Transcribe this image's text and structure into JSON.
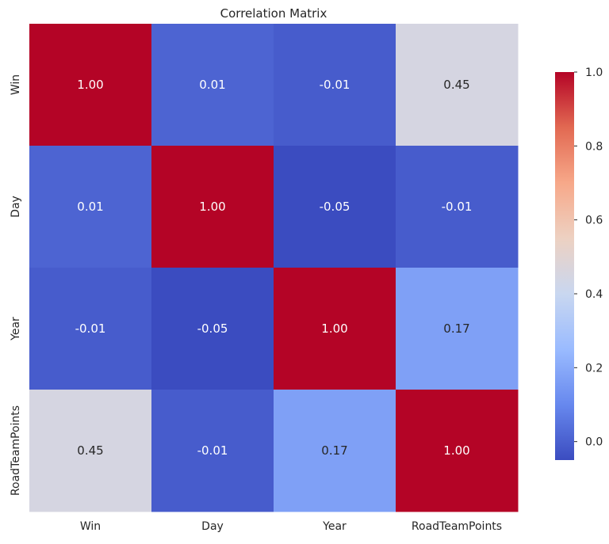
{
  "chart_data": {
    "type": "heatmap",
    "title": "Correlation Matrix",
    "xlabel": "",
    "ylabel": "",
    "row_labels": [
      "Win",
      "Day",
      "Year",
      "RoadTeamPoints"
    ],
    "col_labels": [
      "Win",
      "Day",
      "Year",
      "RoadTeamPoints"
    ],
    "values": [
      [
        1.0,
        0.01,
        -0.01,
        0.45
      ],
      [
        0.01,
        1.0,
        -0.05,
        -0.01
      ],
      [
        -0.01,
        -0.05,
        1.0,
        0.17
      ],
      [
        0.45,
        -0.01,
        0.17,
        1.0
      ]
    ],
    "cell_labels": [
      [
        "1.00",
        "0.01",
        "-0.01",
        "0.45"
      ],
      [
        "0.01",
        "1.00",
        "-0.05",
        "-0.01"
      ],
      [
        "-0.01",
        "-0.05",
        "1.00",
        "0.17"
      ],
      [
        "0.45",
        "-0.01",
        "0.17",
        "1.00"
      ]
    ],
    "colormap": "coolwarm",
    "colormap_stops": [
      "#3b4cc0",
      "#6788ee",
      "#9abbff",
      "#c9d7f0",
      "#edd1c2",
      "#f7a889",
      "#e26952",
      "#b40426"
    ],
    "colorbar": {
      "range": [
        -0.05,
        1.0
      ],
      "ticks": [
        0.0,
        0.2,
        0.4,
        0.6,
        0.8,
        1.0
      ],
      "tick_labels": [
        "0.0",
        "0.2",
        "0.4",
        "0.6",
        "0.8",
        "1.0"
      ]
    },
    "grid": false,
    "legend": "colorbar-right"
  }
}
